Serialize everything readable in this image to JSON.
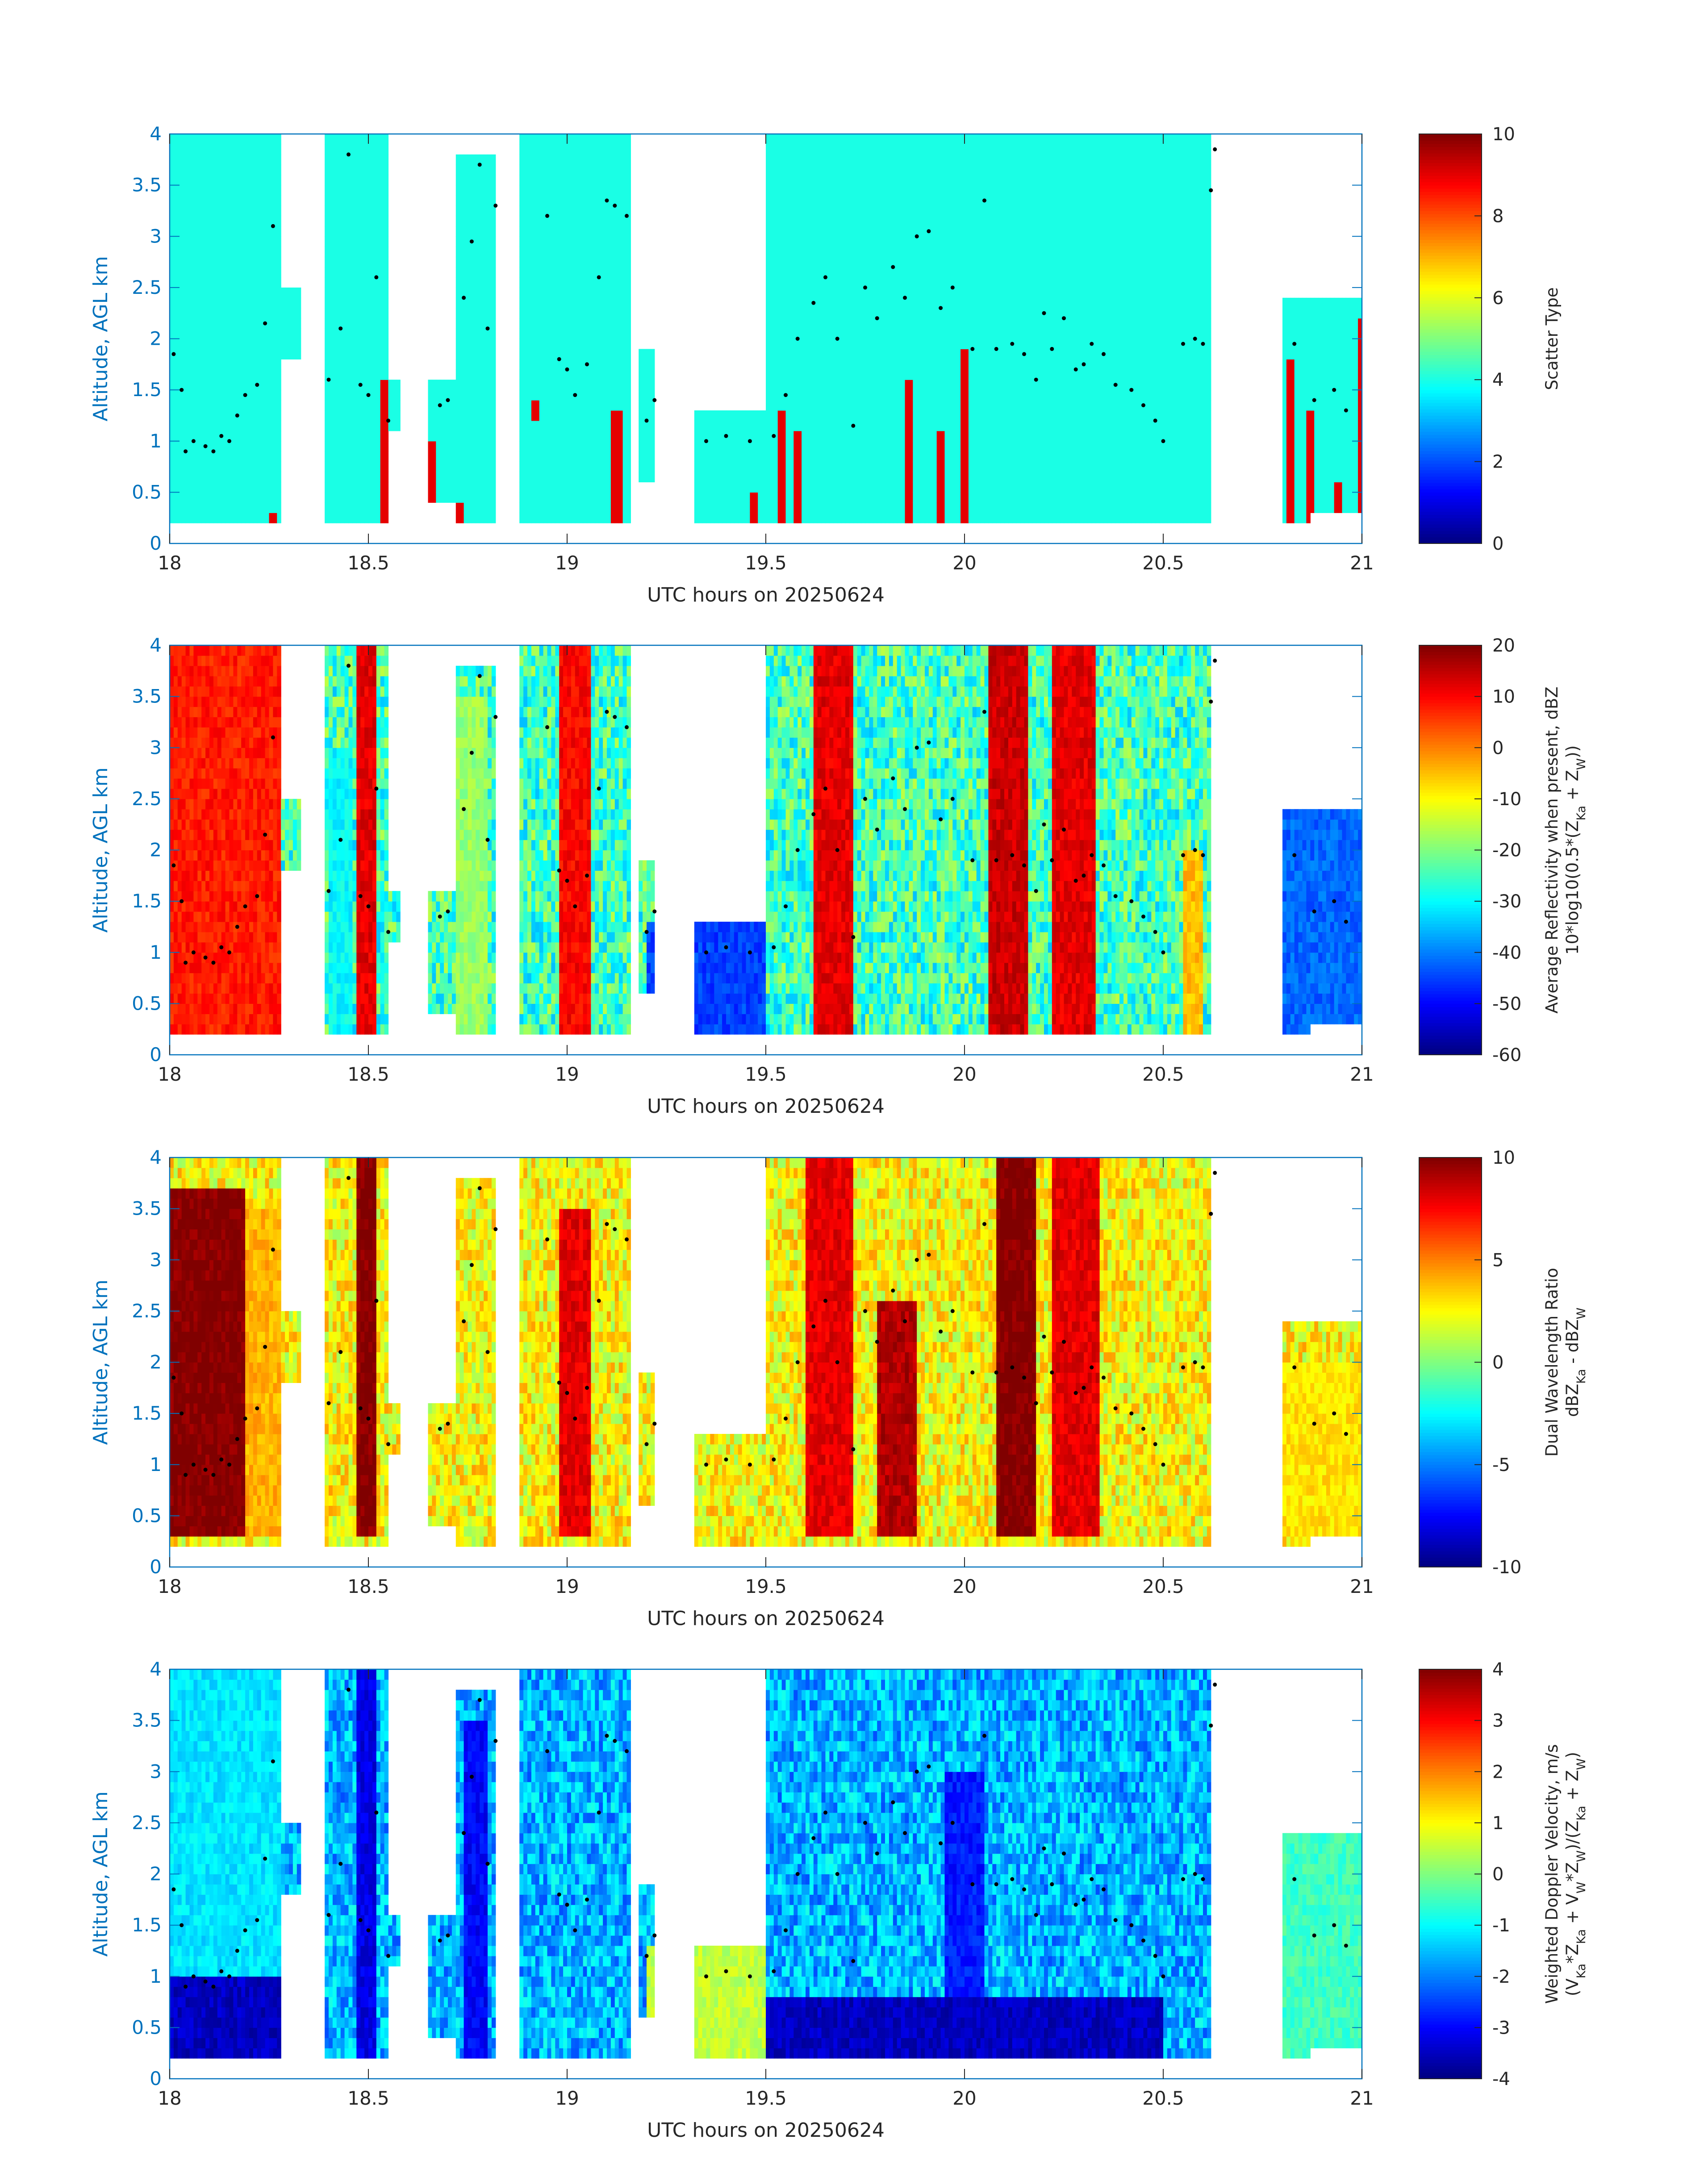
{
  "figure": {
    "shared_x": {
      "label": "UTC hours on 20250624",
      "range": [
        18,
        21
      ],
      "ticks": [
        18,
        18.5,
        19,
        19.5,
        20,
        20.5,
        21
      ],
      "tick_labels": [
        "18",
        "18.5",
        "19",
        "19.5",
        "20",
        "20.5",
        "21"
      ]
    },
    "shared_y": {
      "label": "Altitude, AGL km",
      "range": [
        0,
        4
      ],
      "ticks": [
        0,
        0.5,
        1,
        1.5,
        2,
        2.5,
        3,
        3.5,
        4
      ],
      "tick_labels": [
        "0",
        "0.5",
        "1",
        "1.5",
        "2",
        "2.5",
        "3",
        "3.5",
        "4"
      ]
    },
    "echo_columns_hours": [
      [
        18.0,
        18.28,
        0.2,
        4.0
      ],
      [
        18.28,
        18.33,
        1.8,
        2.5
      ],
      [
        18.39,
        18.55,
        0.2,
        4.0
      ],
      [
        18.55,
        18.58,
        1.1,
        1.6
      ],
      [
        18.65,
        18.72,
        0.4,
        1.6
      ],
      [
        18.72,
        18.82,
        0.2,
        3.8
      ],
      [
        18.88,
        19.16,
        0.2,
        4.0
      ],
      [
        19.18,
        19.22,
        0.6,
        1.9
      ],
      [
        19.32,
        19.5,
        0.2,
        1.3
      ],
      [
        19.5,
        19.96,
        0.2,
        4.0
      ],
      [
        19.96,
        20.5,
        0.2,
        4.0
      ],
      [
        20.5,
        20.62,
        0.2,
        4.0
      ],
      [
        20.8,
        20.87,
        0.2,
        2.4
      ],
      [
        20.87,
        21.0,
        0.3,
        2.4
      ]
    ],
    "black_dots": [
      [
        18.01,
        1.85
      ],
      [
        18.03,
        1.5
      ],
      [
        18.04,
        0.9
      ],
      [
        18.06,
        1.0
      ],
      [
        18.09,
        0.95
      ],
      [
        18.11,
        0.9
      ],
      [
        18.13,
        1.05
      ],
      [
        18.15,
        1.0
      ],
      [
        18.17,
        1.25
      ],
      [
        18.19,
        1.45
      ],
      [
        18.22,
        1.55
      ],
      [
        18.24,
        2.15
      ],
      [
        18.26,
        3.1
      ],
      [
        18.4,
        1.6
      ],
      [
        18.43,
        2.1
      ],
      [
        18.45,
        3.8
      ],
      [
        18.48,
        1.55
      ],
      [
        18.5,
        1.45
      ],
      [
        18.52,
        2.6
      ],
      [
        18.55,
        1.2
      ],
      [
        18.68,
        1.35
      ],
      [
        18.7,
        1.4
      ],
      [
        18.74,
        2.4
      ],
      [
        18.76,
        2.95
      ],
      [
        18.78,
        3.7
      ],
      [
        18.8,
        2.1
      ],
      [
        18.82,
        3.3
      ],
      [
        18.95,
        3.2
      ],
      [
        18.98,
        1.8
      ],
      [
        19.0,
        1.7
      ],
      [
        19.02,
        1.45
      ],
      [
        19.05,
        1.75
      ],
      [
        19.08,
        2.6
      ],
      [
        19.1,
        3.35
      ],
      [
        19.12,
        3.3
      ],
      [
        19.15,
        3.2
      ],
      [
        19.2,
        1.2
      ],
      [
        19.22,
        1.4
      ],
      [
        19.35,
        1.0
      ],
      [
        19.4,
        1.05
      ],
      [
        19.46,
        1.0
      ],
      [
        19.52,
        1.05
      ],
      [
        19.55,
        1.45
      ],
      [
        19.58,
        2.0
      ],
      [
        19.62,
        2.35
      ],
      [
        19.65,
        2.6
      ],
      [
        19.68,
        2.0
      ],
      [
        19.72,
        1.15
      ],
      [
        19.75,
        2.5
      ],
      [
        19.78,
        2.2
      ],
      [
        19.82,
        2.7
      ],
      [
        19.85,
        2.4
      ],
      [
        19.88,
        3.0
      ],
      [
        19.91,
        3.05
      ],
      [
        19.94,
        2.3
      ],
      [
        19.97,
        2.5
      ],
      [
        20.02,
        1.9
      ],
      [
        20.05,
        3.35
      ],
      [
        20.08,
        1.9
      ],
      [
        20.12,
        1.95
      ],
      [
        20.15,
        1.85
      ],
      [
        20.18,
        1.6
      ],
      [
        20.2,
        2.25
      ],
      [
        20.22,
        1.9
      ],
      [
        20.25,
        2.2
      ],
      [
        20.28,
        1.7
      ],
      [
        20.3,
        1.75
      ],
      [
        20.32,
        1.95
      ],
      [
        20.35,
        1.85
      ],
      [
        20.38,
        1.55
      ],
      [
        20.42,
        1.5
      ],
      [
        20.45,
        1.35
      ],
      [
        20.48,
        1.2
      ],
      [
        20.5,
        1.0
      ],
      [
        20.55,
        1.95
      ],
      [
        20.58,
        2.0
      ],
      [
        20.6,
        1.95
      ],
      [
        20.62,
        3.45
      ],
      [
        20.63,
        3.85
      ],
      [
        20.83,
        1.95
      ],
      [
        20.88,
        1.4
      ],
      [
        20.93,
        1.5
      ],
      [
        20.96,
        1.3
      ]
    ]
  },
  "chart_data": [
    {
      "type": "heatmap",
      "title": "",
      "xlabel": "UTC hours on 20250624",
      "ylabel": "Altitude, AGL km",
      "xlim": [
        18,
        21
      ],
      "ylim": [
        0,
        4
      ],
      "colorbar": {
        "label_lines": [
          "Scatter Type"
        ],
        "range": [
          0,
          10
        ],
        "ticks": [
          0,
          2,
          4,
          6,
          8,
          10
        ],
        "tick_labels": [
          "0",
          "2",
          "4",
          "6",
          "8",
          "10"
        ]
      },
      "field": "scatter_type",
      "dominant_value": 4,
      "value_clusters": [
        {
          "x": [
            18.25,
            18.27
          ],
          "y": [
            0.2,
            0.35
          ],
          "value": 9
        },
        {
          "x": [
            18.53,
            18.55
          ],
          "y": [
            0.2,
            1.6
          ],
          "value": 9
        },
        {
          "x": [
            18.65,
            18.67
          ],
          "y": [
            0.4,
            1.0
          ],
          "value": 9
        },
        {
          "x": [
            18.72,
            18.74
          ],
          "y": [
            0.2,
            0.4
          ],
          "value": 9
        },
        {
          "x": [
            18.91,
            18.93
          ],
          "y": [
            1.2,
            1.4
          ],
          "value": 9
        },
        {
          "x": [
            19.11,
            19.14
          ],
          "y": [
            0.2,
            1.3
          ],
          "value": 9
        },
        {
          "x": [
            19.24,
            19.26
          ],
          "y": [
            0.8,
            0.9
          ],
          "value": 9
        },
        {
          "x": [
            19.46,
            19.48
          ],
          "y": [
            0.2,
            0.5
          ],
          "value": 9
        },
        {
          "x": [
            19.53,
            19.55
          ],
          "y": [
            0.2,
            1.3
          ],
          "value": 9
        },
        {
          "x": [
            19.57,
            19.59
          ],
          "y": [
            0.2,
            1.05
          ],
          "value": 9
        },
        {
          "x": [
            19.85,
            19.87
          ],
          "y": [
            0.2,
            1.65
          ],
          "value": 9
        },
        {
          "x": [
            19.93,
            19.95
          ],
          "y": [
            0.2,
            1.05
          ],
          "value": 9
        },
        {
          "x": [
            19.99,
            20.01
          ],
          "y": [
            0.2,
            1.85
          ],
          "value": 9
        },
        {
          "x": [
            20.81,
            20.83
          ],
          "y": [
            0.2,
            1.75
          ],
          "value": 9
        },
        {
          "x": [
            20.86,
            20.88
          ],
          "y": [
            0.2,
            1.3
          ],
          "value": 9
        },
        {
          "x": [
            20.93,
            20.95
          ],
          "y": [
            0.2,
            0.55
          ],
          "value": 9
        },
        {
          "x": [
            20.99,
            21.0
          ],
          "y": [
            0.2,
            2.15
          ],
          "value": 9
        }
      ]
    },
    {
      "type": "heatmap",
      "title": "",
      "xlabel": "UTC hours on 20250624",
      "ylabel": "Altitude, AGL km",
      "xlim": [
        18,
        21
      ],
      "ylim": [
        0,
        4
      ],
      "colorbar": {
        "label_lines": [
          "Average Reflectivity when present, dBZ",
          "10*log10(0.5*(Z_Ka + Z_W))"
        ],
        "range": [
          -60,
          20
        ],
        "ticks": [
          -60,
          -50,
          -40,
          -30,
          -20,
          -10,
          0,
          10,
          20
        ],
        "tick_labels": [
          "-60",
          "-50",
          "-40",
          "-30",
          "-20",
          "-10",
          "0",
          "10",
          "20"
        ]
      },
      "field": "reflectivity_dbz",
      "value_clusters": [
        {
          "x": [
            18.0,
            18.28
          ],
          "y": [
            0.2,
            4.0
          ],
          "value": 8
        },
        {
          "x": [
            18.47,
            18.52
          ],
          "y": [
            0.2,
            4.0
          ],
          "value": 12
        },
        {
          "x": [
            18.98,
            19.06
          ],
          "y": [
            0.2,
            4.0
          ],
          "value": 10
        },
        {
          "x": [
            19.62,
            19.72
          ],
          "y": [
            0.2,
            4.0
          ],
          "value": 12
        },
        {
          "x": [
            20.06,
            20.16
          ],
          "y": [
            0.2,
            4.0
          ],
          "value": 14
        },
        {
          "x": [
            20.22,
            20.33
          ],
          "y": [
            0.2,
            4.0
          ],
          "value": 12
        },
        {
          "x": [
            20.55,
            20.6
          ],
          "y": [
            0.2,
            2.0
          ],
          "value": -5
        },
        {
          "x": [
            18.4,
            18.46
          ],
          "y": [
            0.2,
            3.0
          ],
          "value": -30
        },
        {
          "x": [
            18.72,
            18.8
          ],
          "y": [
            0.2,
            3.5
          ],
          "value": -18
        },
        {
          "x": [
            19.2,
            19.5
          ],
          "y": [
            0.2,
            1.3
          ],
          "value": -45
        },
        {
          "x": [
            20.8,
            21.0
          ],
          "y": [
            0.2,
            2.4
          ],
          "value": -42
        }
      ]
    },
    {
      "type": "heatmap",
      "title": "",
      "xlabel": "UTC hours on 20250624",
      "ylabel": "Altitude, AGL km",
      "xlim": [
        18,
        21
      ],
      "ylim": [
        0,
        4
      ],
      "colorbar": {
        "label_lines": [
          "Dual Wavelength Ratio",
          "dBZ_Ka - dBZ_W"
        ],
        "range": [
          -10,
          10
        ],
        "ticks": [
          -10,
          -5,
          0,
          5,
          10
        ],
        "tick_labels": [
          "-10",
          "-5",
          "0",
          "5",
          "10"
        ]
      },
      "field": "dual_wavelength_ratio_db",
      "value_clusters": [
        {
          "x": [
            18.0,
            18.19
          ],
          "y": [
            0.3,
            3.7
          ],
          "value": 10
        },
        {
          "x": [
            18.19,
            18.28
          ],
          "y": [
            0.3,
            3.5
          ],
          "value": 4
        },
        {
          "x": [
            18.47,
            18.52
          ],
          "y": [
            0.3,
            4.0
          ],
          "value": 10
        },
        {
          "x": [
            18.98,
            19.06
          ],
          "y": [
            0.3,
            3.5
          ],
          "value": 8
        },
        {
          "x": [
            19.6,
            19.72
          ],
          "y": [
            0.3,
            4.0
          ],
          "value": 8
        },
        {
          "x": [
            19.78,
            19.88
          ],
          "y": [
            0.3,
            2.6
          ],
          "value": 9
        },
        {
          "x": [
            20.08,
            20.18
          ],
          "y": [
            0.3,
            4.0
          ],
          "value": 10
        },
        {
          "x": [
            20.22,
            20.34
          ],
          "y": [
            0.3,
            4.0
          ],
          "value": 8
        },
        {
          "x": [
            20.8,
            21.0
          ],
          "y": [
            0.3,
            2.0
          ],
          "value": 3
        }
      ]
    },
    {
      "type": "heatmap",
      "title": "",
      "xlabel": "UTC hours on 20250624",
      "ylabel": "Altitude, AGL km",
      "xlim": [
        18,
        21
      ],
      "ylim": [
        0,
        4
      ],
      "colorbar": {
        "label_lines": [
          "Weighted Doppler Velocity, m/s",
          "(V_Ka*Z_Ka + V_W*Z_W)/(Z_Ka + Z_W)"
        ],
        "range": [
          -4,
          4
        ],
        "ticks": [
          -4,
          -3,
          -2,
          -1,
          0,
          1,
          2,
          3,
          4
        ],
        "tick_labels": [
          "-4",
          "-3",
          "-2",
          "-1",
          "0",
          "1",
          "2",
          "3",
          "4"
        ]
      },
      "field": "weighted_doppler_velocity_ms",
      "value_clusters": [
        {
          "x": [
            18.0,
            18.28
          ],
          "y": [
            0.2,
            1.0
          ],
          "value": -3.5
        },
        {
          "x": [
            18.0,
            18.28
          ],
          "y": [
            1.0,
            4.0
          ],
          "value": -1.2
        },
        {
          "x": [
            18.47,
            18.52
          ],
          "y": [
            0.2,
            4.0
          ],
          "value": -3.2
        },
        {
          "x": [
            18.74,
            18.8
          ],
          "y": [
            0.2,
            3.5
          ],
          "value": -3.0
        },
        {
          "x": [
            19.5,
            20.5
          ],
          "y": [
            0.2,
            0.8
          ],
          "value": -3.5
        },
        {
          "x": [
            19.95,
            20.05
          ],
          "y": [
            0.8,
            3.0
          ],
          "value": -2.8
        },
        {
          "x": [
            19.2,
            19.5
          ],
          "y": [
            0.2,
            1.3
          ],
          "value": 0.5
        },
        {
          "x": [
            20.8,
            21.0
          ],
          "y": [
            0.2,
            2.4
          ],
          "value": -0.5
        }
      ]
    }
  ],
  "colors": {
    "axis": "#0072BD",
    "text": "#262626",
    "dots": "#000000",
    "background": "#ffffff"
  }
}
